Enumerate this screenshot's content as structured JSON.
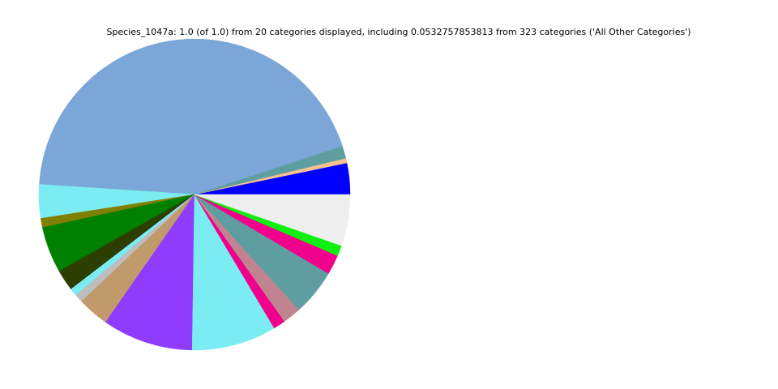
{
  "chart_data": {
    "type": "pie",
    "title": "Species_1047a: 1.0 (of 1.0) from 20 categories displayed, including 0.0532757853813 from 323 categories ('All Other Categories')",
    "values": [
      0.0325,
      0.005,
      0.013,
      0.439,
      0.035,
      0.0095,
      0.048,
      0.022,
      0.008,
      0.0085,
      0.0325,
      0.0945,
      0.038,
      0.05,
      0.0125,
      0.019,
      0.048,
      0.0205,
      0.011,
      0.0533
    ],
    "colors": [
      "#0000ff",
      "#f5c18f",
      "#5f9ea0",
      "#7ba7d8",
      "#7aecf2",
      "#808000",
      "#008000",
      "#2c3f00",
      "#7aecf2",
      "#bdbdbd",
      "#c19a6b",
      "#8f3cff",
      "#7aecf2",
      "#7aecf2",
      "#f0008c",
      "#c08490",
      "#5f9ea0",
      "#f0008c",
      "#10f010",
      "#eeeeee"
    ],
    "start_angle": 0,
    "direction": "counterclockwise"
  }
}
